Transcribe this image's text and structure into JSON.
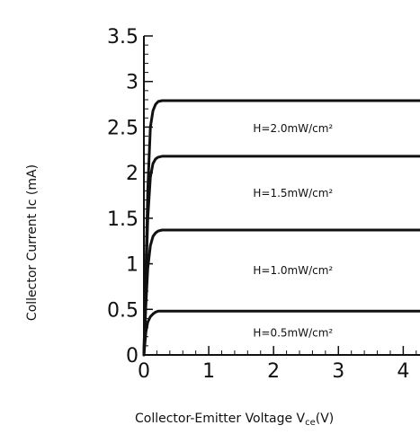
{
  "chart_data": {
    "type": "line",
    "title": "",
    "xlabel": "Collector-Emitter Voltage V",
    "xlabel_subscript": "ce",
    "xlabel_unit": "(V)",
    "ylabel": "Collector Current Ic (mA)",
    "xlim": [
      0,
      4.3
    ],
    "ylim": [
      0,
      3.5
    ],
    "x_ticks": [
      "0",
      "1",
      "2",
      "3",
      "4"
    ],
    "y_ticks": [
      "0",
      "0.5",
      "1",
      "1.5",
      "2",
      "2.5",
      "3",
      "3.5"
    ],
    "grid": false,
    "legend": "none",
    "series": [
      {
        "name": "H=0.5mW/cm²",
        "label": "H=0.5mW/cm²",
        "x": [
          0,
          0.03,
          0.06,
          0.1,
          0.14,
          0.18,
          0.22,
          0.28,
          4.3
        ],
        "values": [
          0,
          0.25,
          0.36,
          0.42,
          0.45,
          0.47,
          0.48,
          0.48,
          0.48
        ]
      },
      {
        "name": "H=1.0mW/cm²",
        "label": "H=1.0mW/cm²",
        "x": [
          0,
          0.03,
          0.06,
          0.1,
          0.14,
          0.18,
          0.22,
          0.28,
          4.3
        ],
        "values": [
          0,
          0.55,
          0.95,
          1.2,
          1.3,
          1.34,
          1.36,
          1.37,
          1.37
        ]
      },
      {
        "name": "H=1.5mW/cm²",
        "label": "H=1.5mW/cm²",
        "x": [
          0,
          0.03,
          0.06,
          0.1,
          0.14,
          0.18,
          0.22,
          0.28,
          4.3
        ],
        "values": [
          0,
          0.8,
          1.5,
          1.95,
          2.1,
          2.15,
          2.17,
          2.18,
          2.18
        ]
      },
      {
        "name": "H=2.0mW/cm²",
        "label": "H=2.0mW/cm²",
        "x": [
          0,
          0.03,
          0.06,
          0.1,
          0.14,
          0.18,
          0.22,
          0.28,
          4.3
        ],
        "values": [
          0,
          0.9,
          1.8,
          2.5,
          2.68,
          2.75,
          2.78,
          2.79,
          2.79
        ]
      }
    ]
  }
}
